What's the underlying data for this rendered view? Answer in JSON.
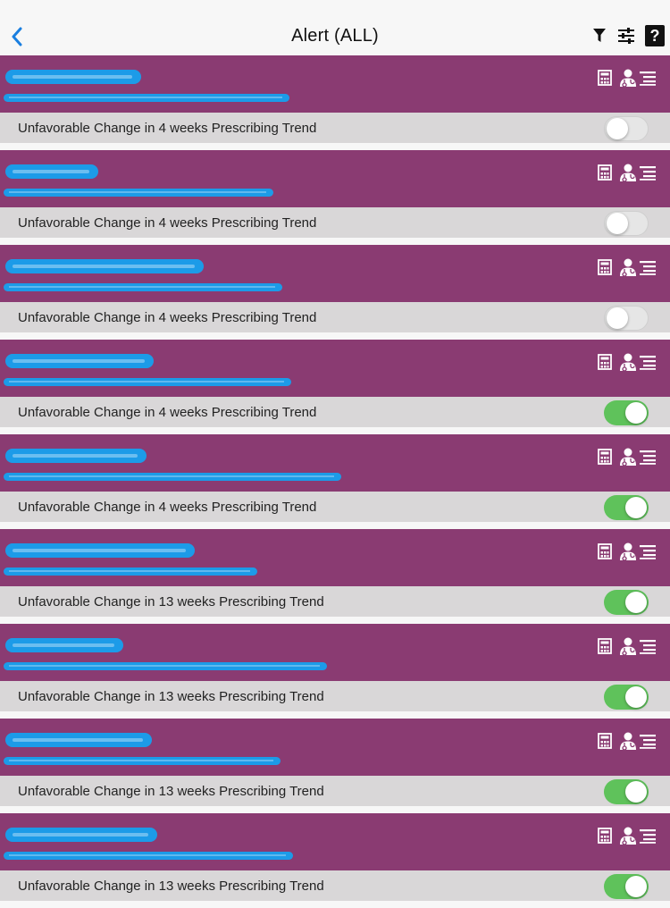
{
  "header": {
    "title": "Alert (ALL)",
    "help_label": "?"
  },
  "alerts": [
    {
      "text": "Unfavorable Change in 4 weeks Prescribing Trend",
      "enabled": false
    },
    {
      "text": "Unfavorable Change in 4 weeks Prescribing Trend",
      "enabled": false
    },
    {
      "text": "Unfavorable Change in 4 weeks Prescribing Trend",
      "enabled": false
    },
    {
      "text": "Unfavorable Change in 4 weeks Prescribing Trend",
      "enabled": true
    },
    {
      "text": "Unfavorable Change in 4 weeks Prescribing Trend",
      "enabled": true
    },
    {
      "text": "Unfavorable Change in 13 weeks Prescribing Trend",
      "enabled": true
    },
    {
      "text": "Unfavorable Change in 13 weeks Prescribing Trend",
      "enabled": true
    },
    {
      "text": "Unfavorable Change in 13 weeks Prescribing Trend",
      "enabled": true
    },
    {
      "text": "Unfavorable Change in 13 weeks Prescribing Trend",
      "enabled": true
    }
  ],
  "colors": {
    "card": "#8a3b72",
    "toggle_on": "#5fc25b",
    "redaction": "#1c9be8"
  },
  "icons": [
    "back-chevron-icon",
    "filter-icon",
    "sliders-icon",
    "help-icon",
    "calculator-icon",
    "doctor-icon",
    "list-icon"
  ]
}
